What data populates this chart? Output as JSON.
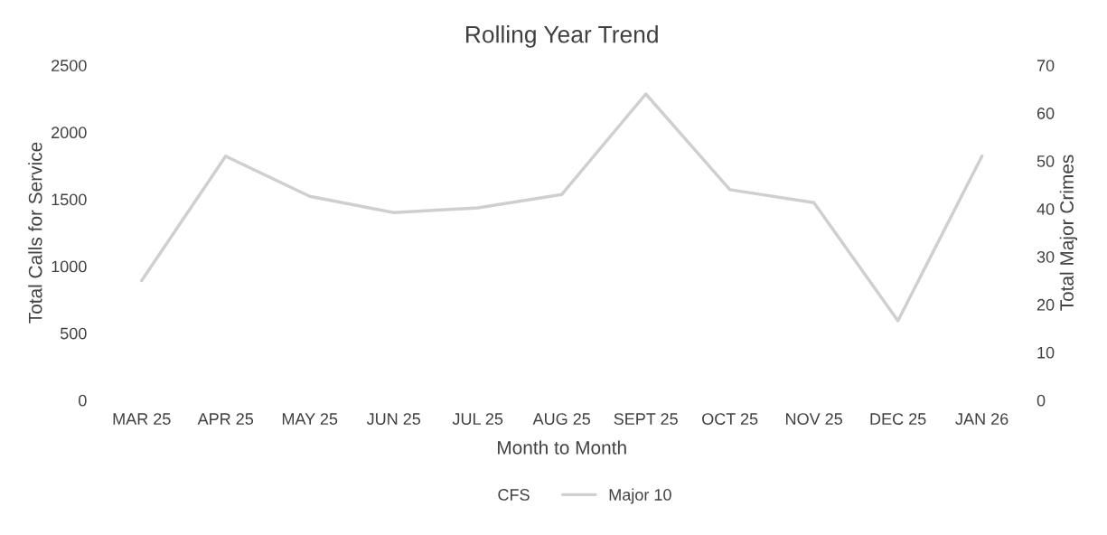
{
  "chart_data": {
    "type": "line",
    "title": "Rolling Year Trend",
    "xlabel": "Month to Month",
    "ylabel": "Total Calls for Service",
    "y2label": "Total Major Crimes",
    "categories": [
      "MAR 25",
      "APR 25",
      "MAY 25",
      "JUN 25",
      "JUL 25",
      "AUG 25",
      "SEPT 25",
      "OCT 25",
      "NOV 25",
      "DEC 25",
      "JAN 26"
    ],
    "series": [
      {
        "name": "CFS",
        "type": "bar",
        "values": [
          null,
          null,
          null,
          null,
          null,
          null,
          null,
          null,
          null,
          null,
          null
        ]
      },
      {
        "name": "Major 10",
        "axis": "y2",
        "color": "#cfcfcf",
        "values": [
          25,
          51,
          42.6,
          39.2,
          40.2,
          43,
          64,
          44,
          41.3,
          16.6,
          51
        ]
      }
    ],
    "ylim": [
      0,
      2500
    ],
    "yticks": [
      0,
      500,
      1000,
      1500,
      2000,
      2500
    ],
    "y2lim": [
      0,
      70
    ],
    "y2ticks": [
      0,
      10,
      20,
      30,
      40,
      50,
      60,
      70
    ],
    "grid": false,
    "legend": "bottom",
    "marker": "none",
    "line_style": "solid"
  }
}
